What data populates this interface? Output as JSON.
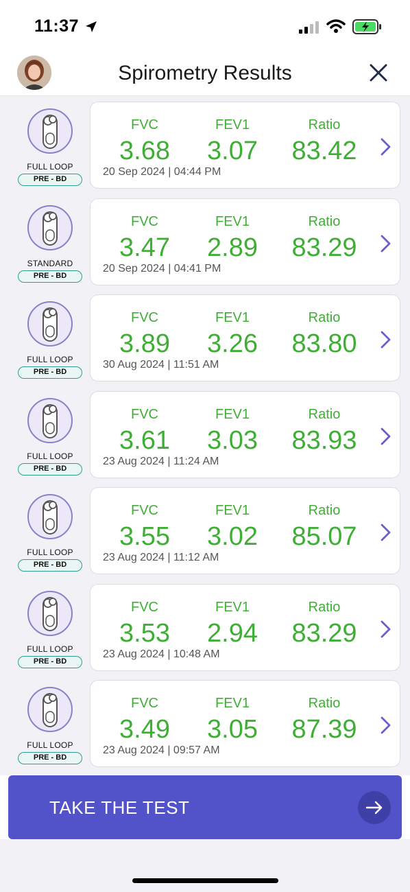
{
  "status_bar": {
    "time": "11:37"
  },
  "header": {
    "title": "Spirometry Results"
  },
  "metric_labels": {
    "fvc": "FVC",
    "fev1": "FEV1",
    "ratio": "Ratio"
  },
  "results": [
    {
      "device_type": "FULL LOOP",
      "phase": "PRE - BD",
      "fvc": "3.68",
      "fev1": "3.07",
      "ratio": "83.42",
      "date": "20 Sep 2024 | 04:44 PM"
    },
    {
      "device_type": "STANDARD",
      "phase": "PRE - BD",
      "fvc": "3.47",
      "fev1": "2.89",
      "ratio": "83.29",
      "date": "20 Sep 2024 | 04:41 PM"
    },
    {
      "device_type": "FULL LOOP",
      "phase": "PRE - BD",
      "fvc": "3.89",
      "fev1": "3.26",
      "ratio": "83.80",
      "date": "30 Aug 2024 | 11:51 AM"
    },
    {
      "device_type": "FULL LOOP",
      "phase": "PRE - BD",
      "fvc": "3.61",
      "fev1": "3.03",
      "ratio": "83.93",
      "date": "23 Aug 2024 | 11:24 AM"
    },
    {
      "device_type": "FULL LOOP",
      "phase": "PRE - BD",
      "fvc": "3.55",
      "fev1": "3.02",
      "ratio": "85.07",
      "date": "23 Aug 2024 | 11:12 AM"
    },
    {
      "device_type": "FULL LOOP",
      "phase": "PRE - BD",
      "fvc": "3.53",
      "fev1": "2.94",
      "ratio": "83.29",
      "date": "23 Aug 2024 | 10:48 AM"
    },
    {
      "device_type": "FULL LOOP",
      "phase": "PRE - BD",
      "fvc": "3.49",
      "fev1": "3.05",
      "ratio": "87.39",
      "date": "23 Aug 2024 | 09:57 AM"
    }
  ],
  "cta": {
    "label": "TAKE THE TEST"
  },
  "colors": {
    "accent": "#5353c9",
    "value_green": "#3fae35",
    "pill_teal": "#2f9e8f",
    "chevron": "#6a5fc8"
  },
  "icons": {
    "avatar": "user-photo",
    "close": "close-icon",
    "device": "spirometer-icon",
    "chevron": "chevron-right-icon",
    "arrow": "arrow-right-icon"
  }
}
